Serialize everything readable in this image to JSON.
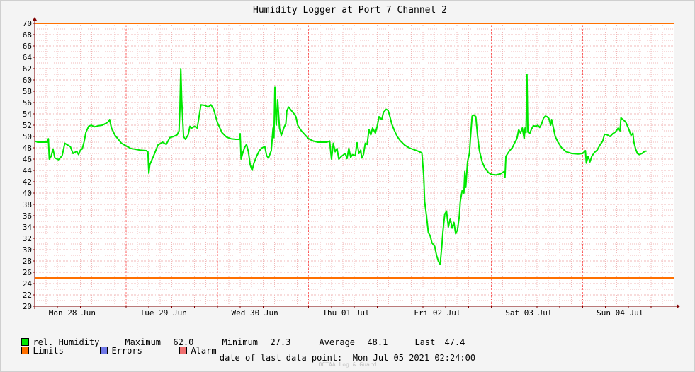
{
  "colors": {
    "series": "#00e800",
    "limits": "#ff7000",
    "errors": "#7078e8",
    "alarm": "#f07070",
    "grid_minor": "#f0b8b8",
    "axis": "#800000"
  },
  "legend": {
    "series_label": "rel. Humidity",
    "maximum_label": "Maximum",
    "maximum_value": "62.0",
    "minimum_label": "Minimum",
    "minimum_value": "27.3",
    "average_label": "Average",
    "average_value": "48.1",
    "last_label": "Last",
    "last_value": "47.4",
    "limits_label": "Limits",
    "errors_label": "Errors",
    "alarm_label": "Alarm"
  },
  "footer": {
    "last_point_label": "date of last data point:",
    "last_point_value": "Mon Jul 05 2021 02:24:00",
    "credit": "OCTAA Log & Guard"
  },
  "chart_data": {
    "type": "line",
    "title": "Humidity Logger at Port 7 Channel 2",
    "ylim": [
      20,
      70
    ],
    "yticks": [
      20,
      22,
      24,
      26,
      28,
      30,
      32,
      34,
      36,
      38,
      40,
      42,
      44,
      46,
      48,
      50,
      52,
      54,
      56,
      58,
      60,
      62,
      64,
      66,
      68,
      70
    ],
    "xlim_days": [
      0,
      7
    ],
    "day_labels": [
      "Mon 28 Jun",
      "Tue 29 Jun",
      "Wed 30 Jun",
      "Thu 01 Jul",
      "Fri 02 Jul",
      "Sat 03 Jul",
      "Sun 04 Jul"
    ],
    "limits": [
      25,
      70
    ],
    "grid": true,
    "series": [
      {
        "name": "rel. Humidity",
        "points": [
          [
            0.0,
            49.2
          ],
          [
            0.03,
            49.0
          ],
          [
            0.14,
            49.0
          ],
          [
            0.15,
            49.6
          ],
          [
            0.16,
            46.0
          ],
          [
            0.18,
            46.5
          ],
          [
            0.2,
            47.8
          ],
          [
            0.22,
            46.2
          ],
          [
            0.26,
            45.9
          ],
          [
            0.3,
            46.6
          ],
          [
            0.33,
            48.8
          ],
          [
            0.36,
            48.5
          ],
          [
            0.39,
            48.2
          ],
          [
            0.42,
            47.0
          ],
          [
            0.46,
            47.4
          ],
          [
            0.48,
            46.8
          ],
          [
            0.5,
            47.6
          ],
          [
            0.52,
            47.8
          ],
          [
            0.54,
            49.0
          ],
          [
            0.56,
            50.7
          ],
          [
            0.59,
            51.8
          ],
          [
            0.62,
            52.0
          ],
          [
            0.65,
            51.7
          ],
          [
            0.7,
            51.9
          ],
          [
            0.74,
            52.0
          ],
          [
            0.8,
            52.5
          ],
          [
            0.82,
            53.0
          ],
          [
            0.84,
            51.5
          ],
          [
            0.88,
            50.2
          ],
          [
            0.95,
            48.8
          ],
          [
            1.05,
            47.9
          ],
          [
            1.15,
            47.6
          ],
          [
            1.22,
            47.5
          ],
          [
            1.24,
            47.3
          ],
          [
            1.25,
            43.5
          ],
          [
            1.26,
            45.0
          ],
          [
            1.3,
            46.5
          ],
          [
            1.35,
            48.5
          ],
          [
            1.4,
            49.0
          ],
          [
            1.44,
            48.6
          ],
          [
            1.48,
            49.8
          ],
          [
            1.52,
            50.0
          ],
          [
            1.56,
            50.3
          ],
          [
            1.58,
            51.0
          ],
          [
            1.59,
            55.0
          ],
          [
            1.6,
            62.0
          ],
          [
            1.61,
            56.5
          ],
          [
            1.63,
            50.0
          ],
          [
            1.65,
            49.5
          ],
          [
            1.68,
            50.3
          ],
          [
            1.7,
            51.8
          ],
          [
            1.72,
            51.5
          ],
          [
            1.75,
            51.8
          ],
          [
            1.78,
            51.5
          ],
          [
            1.8,
            53.5
          ],
          [
            1.82,
            55.6
          ],
          [
            1.86,
            55.5
          ],
          [
            1.9,
            55.2
          ],
          [
            1.93,
            55.6
          ],
          [
            1.96,
            54.8
          ],
          [
            2.0,
            52.5
          ],
          [
            2.05,
            50.7
          ],
          [
            2.1,
            49.9
          ],
          [
            2.15,
            49.6
          ],
          [
            2.2,
            49.5
          ],
          [
            2.24,
            49.5
          ],
          [
            2.25,
            50.5
          ],
          [
            2.26,
            46.0
          ],
          [
            2.28,
            47.2
          ],
          [
            2.3,
            48.1
          ],
          [
            2.32,
            48.6
          ],
          [
            2.34,
            47.3
          ],
          [
            2.36,
            45.0
          ],
          [
            2.38,
            44.0
          ],
          [
            2.4,
            45.3
          ],
          [
            2.43,
            46.5
          ],
          [
            2.46,
            47.5
          ],
          [
            2.49,
            48.0
          ],
          [
            2.52,
            48.2
          ],
          [
            2.54,
            46.6
          ],
          [
            2.56,
            46.2
          ],
          [
            2.59,
            47.5
          ],
          [
            2.61,
            51.5
          ],
          [
            2.62,
            49.8
          ],
          [
            2.63,
            58.7
          ],
          [
            2.645,
            52.0
          ],
          [
            2.66,
            56.5
          ],
          [
            2.68,
            51.5
          ],
          [
            2.7,
            50.2
          ],
          [
            2.73,
            51.6
          ],
          [
            2.75,
            52.3
          ],
          [
            2.76,
            54.5
          ],
          [
            2.78,
            55.2
          ],
          [
            2.81,
            54.6
          ],
          [
            2.84,
            54.0
          ],
          [
            2.86,
            53.5
          ],
          [
            2.88,
            52.0
          ],
          [
            2.92,
            51.0
          ],
          [
            2.96,
            50.3
          ],
          [
            3.0,
            49.6
          ],
          [
            3.05,
            49.2
          ],
          [
            3.1,
            49.0
          ],
          [
            3.15,
            49.0
          ],
          [
            3.2,
            49.0
          ],
          [
            3.23,
            49.2
          ],
          [
            3.25,
            46.0
          ],
          [
            3.27,
            48.8
          ],
          [
            3.29,
            47.3
          ],
          [
            3.31,
            47.9
          ],
          [
            3.33,
            46.0
          ],
          [
            3.36,
            46.5
          ],
          [
            3.4,
            47.0
          ],
          [
            3.42,
            46.1
          ],
          [
            3.44,
            47.9
          ],
          [
            3.46,
            46.3
          ],
          [
            3.48,
            46.8
          ],
          [
            3.51,
            46.6
          ],
          [
            3.53,
            48.9
          ],
          [
            3.55,
            47.0
          ],
          [
            3.57,
            47.6
          ],
          [
            3.58,
            46.2
          ],
          [
            3.6,
            46.8
          ],
          [
            3.62,
            48.8
          ],
          [
            3.64,
            48.6
          ],
          [
            3.66,
            51.2
          ],
          [
            3.68,
            50.3
          ],
          [
            3.7,
            51.5
          ],
          [
            3.73,
            50.6
          ],
          [
            3.75,
            51.8
          ],
          [
            3.77,
            53.5
          ],
          [
            3.8,
            53.0
          ],
          [
            3.82,
            54.3
          ],
          [
            3.85,
            54.8
          ],
          [
            3.87,
            54.6
          ],
          [
            3.89,
            53.5
          ],
          [
            3.91,
            52.2
          ],
          [
            3.94,
            51.0
          ],
          [
            3.97,
            50.0
          ],
          [
            4.0,
            49.3
          ],
          [
            4.05,
            48.5
          ],
          [
            4.1,
            48.0
          ],
          [
            4.15,
            47.7
          ],
          [
            4.2,
            47.4
          ],
          [
            4.24,
            47.1
          ],
          [
            4.26,
            43.0
          ],
          [
            4.27,
            38.5
          ],
          [
            4.29,
            36.0
          ],
          [
            4.31,
            33.0
          ],
          [
            4.33,
            32.5
          ],
          [
            4.35,
            31.2
          ],
          [
            4.38,
            30.6
          ],
          [
            4.4,
            29.0
          ],
          [
            4.42,
            28.0
          ],
          [
            4.44,
            27.4
          ],
          [
            4.46,
            31.0
          ],
          [
            4.47,
            33.2
          ],
          [
            4.49,
            36.3
          ],
          [
            4.51,
            36.8
          ],
          [
            4.53,
            34.0
          ],
          [
            4.55,
            35.5
          ],
          [
            4.57,
            33.8
          ],
          [
            4.59,
            34.8
          ],
          [
            4.61,
            32.8
          ],
          [
            4.63,
            33.5
          ],
          [
            4.65,
            36.0
          ],
          [
            4.66,
            38.5
          ],
          [
            4.68,
            40.4
          ],
          [
            4.7,
            40.0
          ],
          [
            4.71,
            43.8
          ],
          [
            4.72,
            41.0
          ],
          [
            4.74,
            45.6
          ],
          [
            4.76,
            47.0
          ],
          [
            4.77,
            49.5
          ],
          [
            4.79,
            53.6
          ],
          [
            4.81,
            53.8
          ],
          [
            4.83,
            53.5
          ],
          [
            4.85,
            50.0
          ],
          [
            4.87,
            47.5
          ],
          [
            4.9,
            45.5
          ],
          [
            4.93,
            44.4
          ],
          [
            4.97,
            43.6
          ],
          [
            5.0,
            43.3
          ],
          [
            5.05,
            43.2
          ],
          [
            5.1,
            43.4
          ],
          [
            5.14,
            43.8
          ],
          [
            5.15,
            42.8
          ],
          [
            5.16,
            46.5
          ],
          [
            5.18,
            47.0
          ],
          [
            5.2,
            47.5
          ],
          [
            5.23,
            48.0
          ],
          [
            5.25,
            48.7
          ],
          [
            5.28,
            49.6
          ],
          [
            5.3,
            51.2
          ],
          [
            5.32,
            50.6
          ],
          [
            5.34,
            51.5
          ],
          [
            5.36,
            49.6
          ],
          [
            5.37,
            51.5
          ],
          [
            5.38,
            50.7
          ],
          [
            5.39,
            61.0
          ],
          [
            5.4,
            50.8
          ],
          [
            5.42,
            50.5
          ],
          [
            5.44,
            51.3
          ],
          [
            5.46,
            51.9
          ],
          [
            5.49,
            51.8
          ],
          [
            5.51,
            52.0
          ],
          [
            5.53,
            51.6
          ],
          [
            5.55,
            52.2
          ],
          [
            5.57,
            53.2
          ],
          [
            5.59,
            53.6
          ],
          [
            5.61,
            53.5
          ],
          [
            5.63,
            53.2
          ],
          [
            5.65,
            52.0
          ],
          [
            5.66,
            53.0
          ],
          [
            5.68,
            51.5
          ],
          [
            5.7,
            50.0
          ],
          [
            5.73,
            49.0
          ],
          [
            5.77,
            48.0
          ],
          [
            5.82,
            47.3
          ],
          [
            5.88,
            47.0
          ],
          [
            5.95,
            46.9
          ],
          [
            6.0,
            47.0
          ],
          [
            6.03,
            47.5
          ],
          [
            6.04,
            45.3
          ],
          [
            6.06,
            46.5
          ],
          [
            6.08,
            45.5
          ],
          [
            6.1,
            46.5
          ],
          [
            6.13,
            47.2
          ],
          [
            6.16,
            47.6
          ],
          [
            6.19,
            48.5
          ],
          [
            6.22,
            49.2
          ],
          [
            6.24,
            50.4
          ],
          [
            6.27,
            50.3
          ],
          [
            6.3,
            50.0
          ],
          [
            6.33,
            50.5
          ],
          [
            6.36,
            50.8
          ],
          [
            6.39,
            51.5
          ],
          [
            6.41,
            51.0
          ],
          [
            6.42,
            53.3
          ],
          [
            6.44,
            53.0
          ],
          [
            6.47,
            52.6
          ],
          [
            6.5,
            51.5
          ],
          [
            6.53,
            50.2
          ],
          [
            6.55,
            50.6
          ],
          [
            6.56,
            49.1
          ],
          [
            6.58,
            47.8
          ],
          [
            6.6,
            47.0
          ],
          [
            6.62,
            46.8
          ],
          [
            6.65,
            47.0
          ],
          [
            6.68,
            47.4
          ],
          [
            6.7,
            47.4
          ]
        ]
      }
    ]
  }
}
